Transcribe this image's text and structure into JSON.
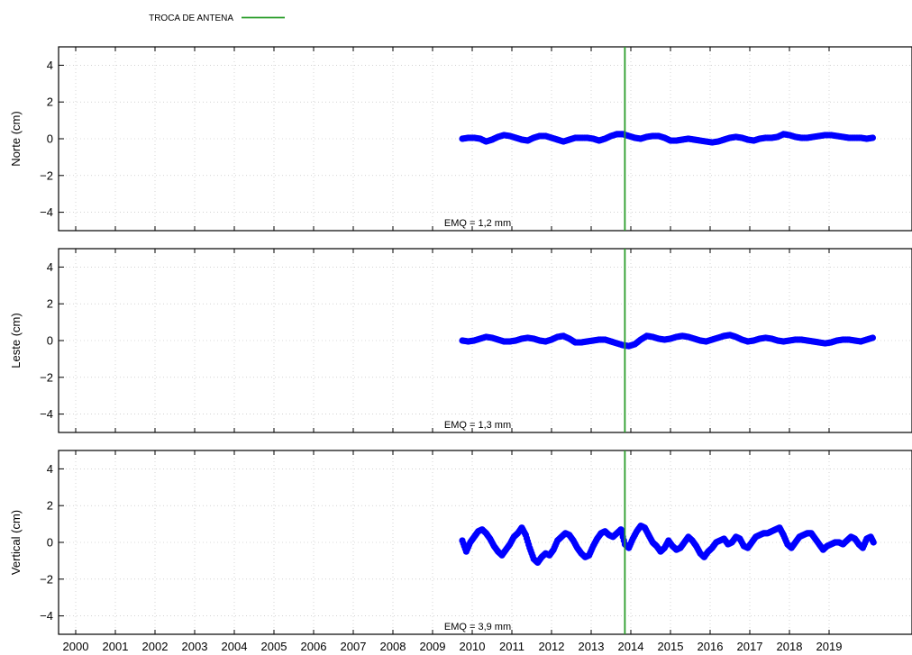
{
  "chart_data": {
    "type": "scatter",
    "legend": {
      "label": "TROCA DE ANTENA",
      "color": "#2a9d2a",
      "placement": "top-left"
    },
    "event_line": {
      "x": 2013.85,
      "color": "#2a9d2a",
      "label": "TROCA DE ANTENA"
    },
    "series_color": "#0000ff",
    "x_ticks": [
      "2000",
      "2001",
      "2002",
      "2003",
      "2004",
      "2005",
      "2006",
      "2007",
      "2008",
      "2009",
      "2010",
      "2011",
      "2012",
      "2013",
      "2014",
      "2015",
      "2016",
      "2017",
      "2018",
      "2019"
    ],
    "xlim": [
      1999.7,
      2020.15
    ],
    "grid": true,
    "panels": [
      {
        "ylabel": "Norte (cm)",
        "ylim": [
          -5,
          5
        ],
        "y_ticks": [
          "4",
          "2",
          "0",
          "−2",
          "−4"
        ],
        "stat_label": "EMQ = 1,2 mm",
        "x": [
          2009.75,
          2009.9,
          2010.05,
          2010.2,
          2010.35,
          2010.5,
          2010.65,
          2010.8,
          2010.95,
          2011.1,
          2011.25,
          2011.4,
          2011.55,
          2011.7,
          2011.85,
          2012.0,
          2012.15,
          2012.3,
          2012.45,
          2012.6,
          2012.75,
          2012.9,
          2013.05,
          2013.2,
          2013.35,
          2013.5,
          2013.65,
          2013.8,
          2013.95,
          2014.1,
          2014.25,
          2014.4,
          2014.55,
          2014.7,
          2014.85,
          2015.0,
          2015.15,
          2015.3,
          2015.45,
          2015.6,
          2015.75,
          2015.9,
          2016.05,
          2016.2,
          2016.35,
          2016.5,
          2016.65,
          2016.8,
          2016.95,
          2017.1,
          2017.25,
          2017.4,
          2017.55,
          2017.7,
          2017.85,
          2018.0,
          2018.15,
          2018.3,
          2018.45,
          2018.6,
          2018.75,
          2018.9,
          2019.05,
          2019.2,
          2019.35,
          2019.5,
          2019.65,
          2019.8,
          2019.95,
          2020.1
        ],
        "y": [
          0.0,
          0.05,
          0.05,
          0.0,
          -0.15,
          -0.05,
          0.1,
          0.2,
          0.15,
          0.05,
          -0.05,
          -0.1,
          0.05,
          0.15,
          0.15,
          0.05,
          -0.05,
          -0.15,
          -0.05,
          0.05,
          0.05,
          0.05,
          0.0,
          -0.1,
          0.0,
          0.15,
          0.25,
          0.25,
          0.15,
          0.05,
          0.0,
          0.1,
          0.15,
          0.15,
          0.05,
          -0.1,
          -0.1,
          -0.05,
          0.0,
          -0.05,
          -0.1,
          -0.15,
          -0.2,
          -0.15,
          -0.05,
          0.05,
          0.1,
          0.05,
          -0.05,
          -0.1,
          0.0,
          0.05,
          0.05,
          0.1,
          0.25,
          0.2,
          0.1,
          0.05,
          0.05,
          0.1,
          0.15,
          0.2,
          0.2,
          0.15,
          0.1,
          0.05,
          0.05,
          0.05,
          0.0,
          0.05
        ]
      },
      {
        "ylabel": "Leste (cm)",
        "ylim": [
          -5,
          5
        ],
        "y_ticks": [
          "4",
          "2",
          "0",
          "−2",
          "−4"
        ],
        "stat_label": "EMQ = 1,3 mm",
        "x": [
          2009.75,
          2009.9,
          2010.05,
          2010.2,
          2010.35,
          2010.5,
          2010.65,
          2010.8,
          2010.95,
          2011.1,
          2011.25,
          2011.4,
          2011.55,
          2011.7,
          2011.85,
          2012.0,
          2012.15,
          2012.3,
          2012.45,
          2012.6,
          2012.75,
          2012.9,
          2013.05,
          2013.2,
          2013.35,
          2013.5,
          2013.65,
          2013.8,
          2013.95,
          2014.1,
          2014.25,
          2014.4,
          2014.55,
          2014.7,
          2014.85,
          2015.0,
          2015.15,
          2015.3,
          2015.45,
          2015.6,
          2015.75,
          2015.9,
          2016.05,
          2016.2,
          2016.35,
          2016.5,
          2016.65,
          2016.8,
          2016.95,
          2017.1,
          2017.25,
          2017.4,
          2017.55,
          2017.7,
          2017.85,
          2018.0,
          2018.15,
          2018.3,
          2018.45,
          2018.6,
          2018.75,
          2018.9,
          2019.05,
          2019.2,
          2019.35,
          2019.5,
          2019.65,
          2019.8,
          2019.95,
          2020.1
        ],
        "y": [
          0.0,
          -0.05,
          0.0,
          0.1,
          0.2,
          0.15,
          0.05,
          -0.05,
          -0.05,
          0.0,
          0.1,
          0.15,
          0.1,
          0.0,
          -0.05,
          0.05,
          0.2,
          0.25,
          0.1,
          -0.1,
          -0.1,
          -0.05,
          0.0,
          0.05,
          0.05,
          -0.05,
          -0.15,
          -0.25,
          -0.3,
          -0.2,
          0.05,
          0.25,
          0.2,
          0.1,
          0.05,
          0.1,
          0.2,
          0.25,
          0.2,
          0.1,
          0.0,
          -0.05,
          0.05,
          0.15,
          0.25,
          0.3,
          0.2,
          0.05,
          -0.05,
          0.0,
          0.1,
          0.15,
          0.1,
          0.0,
          -0.05,
          0.0,
          0.05,
          0.05,
          0.0,
          -0.05,
          -0.1,
          -0.15,
          -0.1,
          0.0,
          0.05,
          0.05,
          0.0,
          -0.05,
          0.05,
          0.15
        ]
      },
      {
        "ylabel": "Vertical (cm)",
        "ylim": [
          -5,
          5
        ],
        "y_ticks": [
          "4",
          "2",
          "0",
          "−2",
          "−4"
        ],
        "stat_label": "EMQ = 3,9 mm",
        "x": [
          2009.75,
          2009.85,
          2009.95,
          2010.05,
          2010.15,
          2010.25,
          2010.35,
          2010.45,
          2010.55,
          2010.65,
          2010.75,
          2010.85,
          2010.95,
          2011.05,
          2011.15,
          2011.25,
          2011.35,
          2011.45,
          2011.55,
          2011.65,
          2011.75,
          2011.85,
          2011.95,
          2012.05,
          2012.15,
          2012.25,
          2012.35,
          2012.45,
          2012.55,
          2012.65,
          2012.75,
          2012.85,
          2012.95,
          2013.05,
          2013.15,
          2013.25,
          2013.35,
          2013.45,
          2013.55,
          2013.65,
          2013.75,
          2013.85,
          2013.95,
          2014.05,
          2014.15,
          2014.25,
          2014.35,
          2014.45,
          2014.55,
          2014.65,
          2014.75,
          2014.85,
          2014.95,
          2015.05,
          2015.15,
          2015.25,
          2015.35,
          2015.45,
          2015.55,
          2015.65,
          2015.75,
          2015.85,
          2015.95,
          2016.05,
          2016.15,
          2016.25,
          2016.35,
          2016.45,
          2016.55,
          2016.65,
          2016.75,
          2016.85,
          2016.95,
          2017.05,
          2017.15,
          2017.25,
          2017.35,
          2017.45,
          2017.55,
          2017.65,
          2017.75,
          2017.85,
          2017.95,
          2018.05,
          2018.15,
          2018.25,
          2018.35,
          2018.45,
          2018.55,
          2018.65,
          2018.75,
          2018.85,
          2018.95,
          2019.05,
          2019.15,
          2019.25,
          2019.35,
          2019.45,
          2019.55,
          2019.65,
          2019.75,
          2019.85,
          2019.95,
          2020.05,
          2020.12
        ],
        "y": [
          0.1,
          -0.5,
          0.0,
          0.3,
          0.6,
          0.7,
          0.5,
          0.2,
          -0.2,
          -0.5,
          -0.7,
          -0.4,
          -0.1,
          0.3,
          0.5,
          0.8,
          0.4,
          -0.3,
          -0.9,
          -1.1,
          -0.8,
          -0.6,
          -0.7,
          -0.4,
          0.1,
          0.3,
          0.5,
          0.4,
          0.1,
          -0.3,
          -0.6,
          -0.8,
          -0.7,
          -0.2,
          0.2,
          0.5,
          0.6,
          0.4,
          0.3,
          0.5,
          0.7,
          -0.1,
          -0.3,
          0.2,
          0.6,
          0.9,
          0.8,
          0.4,
          0.0,
          -0.2,
          -0.5,
          -0.3,
          0.1,
          -0.2,
          -0.4,
          -0.3,
          0.0,
          0.3,
          0.1,
          -0.2,
          -0.6,
          -0.8,
          -0.5,
          -0.3,
          0.0,
          0.1,
          0.2,
          -0.1,
          0.0,
          0.3,
          0.2,
          -0.2,
          -0.3,
          0.0,
          0.3,
          0.4,
          0.5,
          0.5,
          0.6,
          0.7,
          0.8,
          0.4,
          -0.1,
          -0.3,
          0.0,
          0.3,
          0.4,
          0.5,
          0.5,
          0.2,
          -0.1,
          -0.4,
          -0.2,
          -0.1,
          0.0,
          0.0,
          -0.1,
          0.1,
          0.3,
          0.2,
          -0.1,
          -0.3,
          0.2,
          0.3,
          0.0
        ]
      }
    ]
  }
}
